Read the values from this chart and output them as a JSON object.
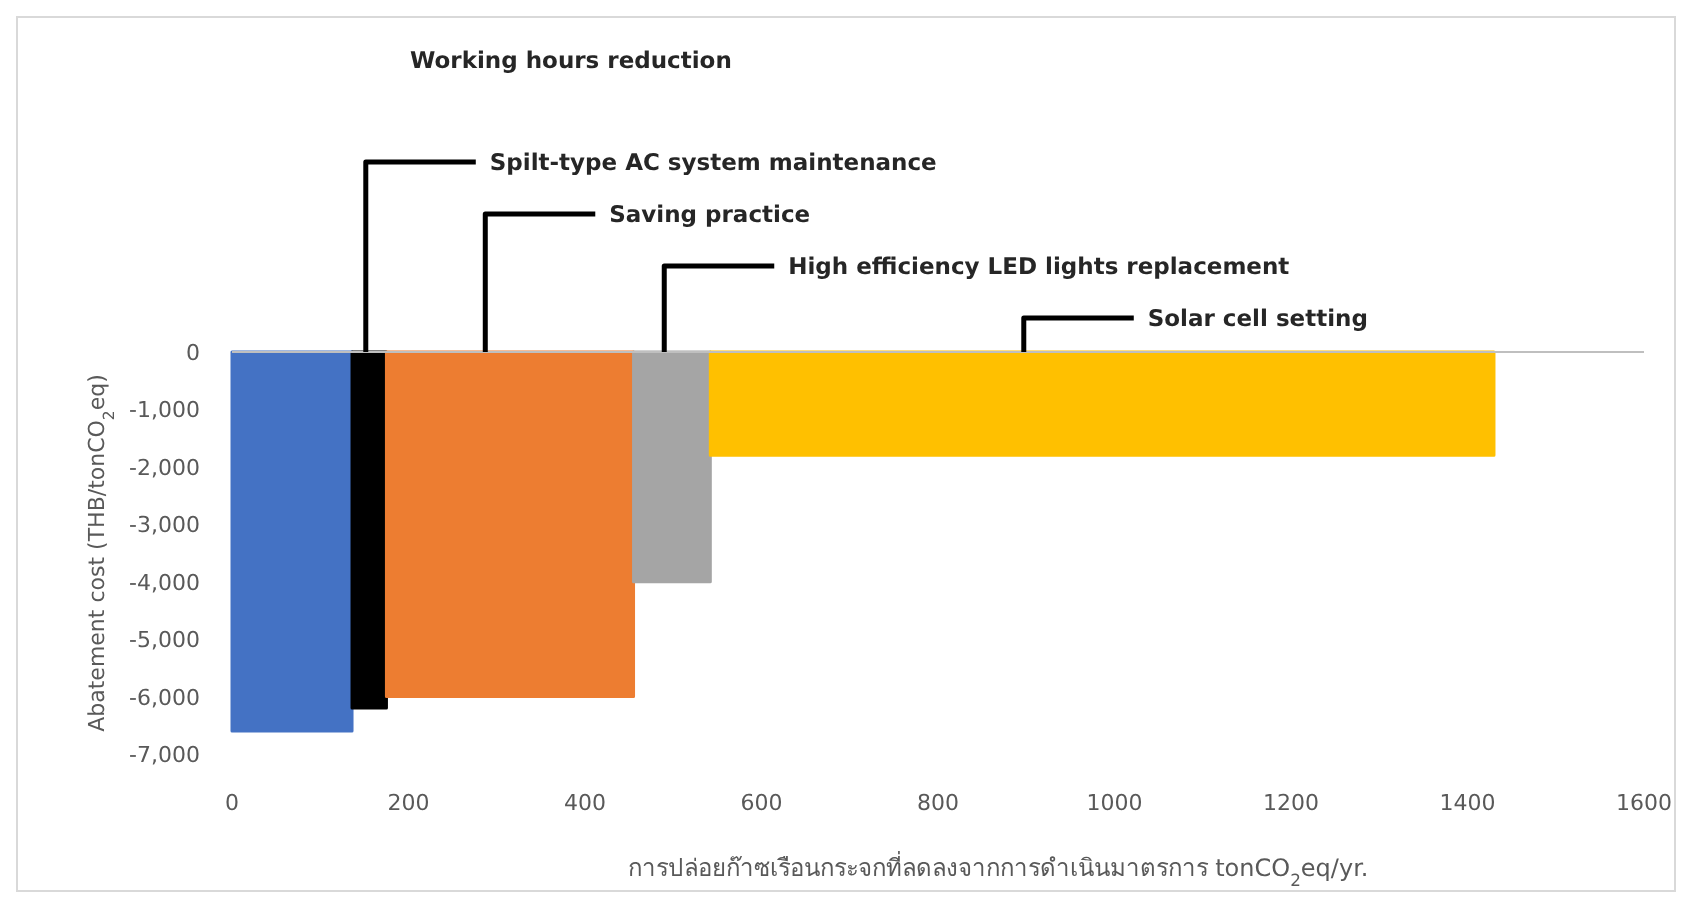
{
  "chart_data": {
    "type": "area",
    "xlabel": "การปล่อยก๊าซเรือนกระจกที่ลดลงจากการดำเนินมาตรการ tonCO$_{2}$eq/yr.",
    "ylabel": "Abatement cost (THB/tonCO$_{2}$eq)",
    "annotations": [
      "Working hours reduction"
    ],
    "series": [
      {
        "color": "#4472c4",
        "x": [
          0,
          136
        ],
        "values": [
          -6600,
          -6600
        ]
      },
      {
        "name": "Spilt-type AC system maintenance",
        "color": "#000000",
        "x": [
          136,
          175
        ],
        "values": [
          -6200,
          -6200
        ]
      },
      {
        "name": "Saving practice",
        "color": "#ed7d31",
        "x": [
          175,
          455
        ],
        "values": [
          -6000,
          -6000
        ]
      },
      {
        "name": "High efficiency LED lights replacement",
        "color": "#a5a5a5",
        "x": [
          455,
          542
        ],
        "values": [
          -4000,
          -4000
        ]
      },
      {
        "name": "Solar cell setting",
        "color": "#ffc000",
        "x": [
          542,
          1430
        ],
        "values": [
          -1800,
          -1800
        ]
      }
    ],
    "xlim": [
      0,
      1600
    ],
    "xticks": [
      0,
      200,
      400,
      600,
      800,
      1000,
      1200,
      1400,
      1600
    ],
    "ylim": [
      -7000,
      0
    ],
    "yticks": [
      0,
      {
        "value": -1000,
        "label": "-1,000"
      },
      {
        "value": -2000,
        "label": "-2,000"
      },
      {
        "value": -3000,
        "label": "-3,000"
      },
      {
        "value": -4000,
        "label": "-4,000"
      },
      {
        "value": -5000,
        "label": "-5,000"
      },
      {
        "value": -6000,
        "label": "-6,000"
      },
      {
        "value": -7000,
        "label": "-7,000"
      }
    ],
    "grid": false
  }
}
